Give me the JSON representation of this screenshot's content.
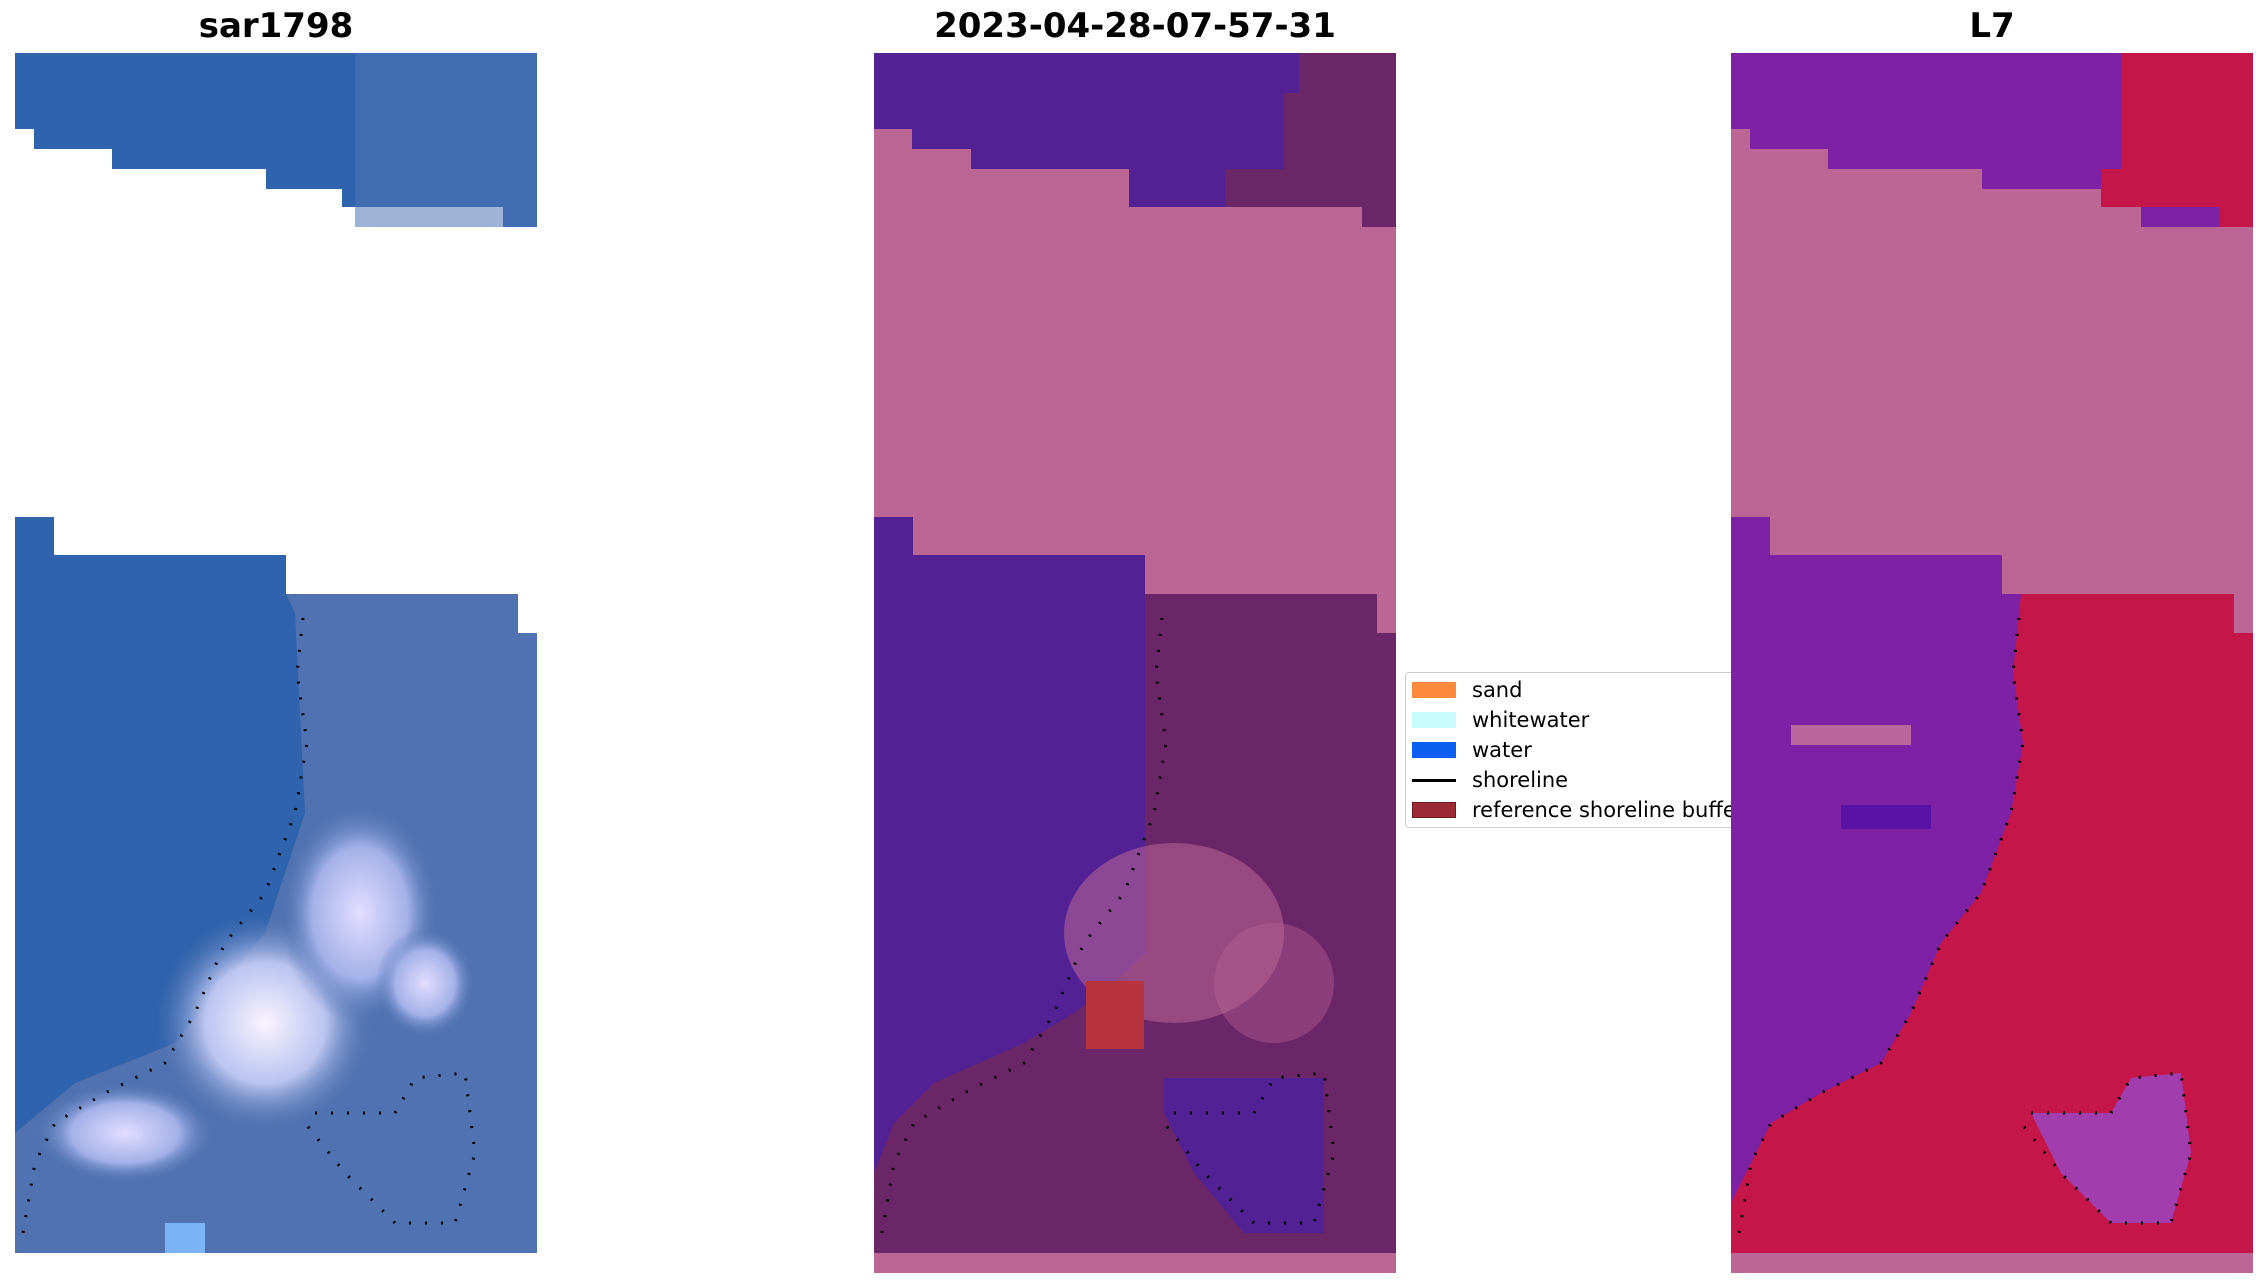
{
  "panels": [
    {
      "title": "sar1798"
    },
    {
      "title": "2023-04-28-07-57-31"
    },
    {
      "title": "L7"
    }
  ],
  "legend": {
    "items": [
      {
        "label": "sand",
        "color": "#fb8a3c",
        "kind": "patch"
      },
      {
        "label": "whitewater",
        "color": "#c8fcfc",
        "kind": "patch"
      },
      {
        "label": "water",
        "color": "#0a5ef0",
        "kind": "patch"
      },
      {
        "label": "shoreline",
        "color": "#000000",
        "kind": "line"
      },
      {
        "label": "reference shoreline buffer",
        "color": "#9b2a34",
        "kind": "patch"
      }
    ]
  },
  "colors": {
    "sar_water": "#2f63ad",
    "sar_land": "#5072b0",
    "sar_white": "#dde6ff",
    "masked_pink": "#bb6695",
    "purple_water": "#522295",
    "purple_land": "#6b2668",
    "buffer_red": "#b7343e",
    "l7_water": "#7d22a5",
    "l7_land": "#c41648",
    "shoreline": "#000000"
  }
}
